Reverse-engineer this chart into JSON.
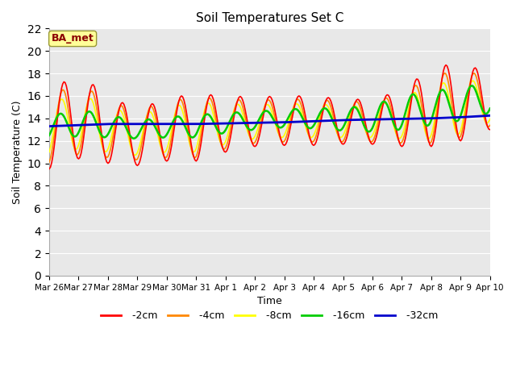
{
  "title": "Soil Temperatures Set C",
  "xlabel": "Time",
  "ylabel": "Soil Temperature (C)",
  "ylim": [
    0,
    22
  ],
  "yticks": [
    0,
    2,
    4,
    6,
    8,
    10,
    12,
    14,
    16,
    18,
    20,
    22
  ],
  "fig_bg": "#ffffff",
  "plot_bg": "#e8e8e8",
  "grid_color": "#ffffff",
  "annotation_text": "BA_met",
  "annotation_color": "#8b0000",
  "annotation_bg": "#ffff99",
  "annotation_edge": "#999933",
  "line_colors": {
    "-2cm": "#ff0000",
    "-4cm": "#ff8800",
    "-8cm": "#ffff00",
    "-16cm": "#00cc00",
    "-32cm": "#0000cc"
  },
  "line_widths": {
    "-2cm": 1.2,
    "-4cm": 1.2,
    "-8cm": 1.2,
    "-16cm": 1.8,
    "-32cm": 2.0
  },
  "xticklabels": [
    "Mar 26",
    "Mar 27",
    "Mar 28",
    "Mar 29",
    "Mar 30",
    "Mar 31",
    "Apr 1",
    "Apr 2",
    "Apr 3",
    "Apr 4",
    "Apr 5",
    "Apr 6",
    "Apr 7",
    "Apr 8",
    "Apr 9",
    "Apr 10"
  ],
  "n_per_day": 24,
  "n_days": 15,
  "base_32cm": [
    13.3,
    13.4,
    13.5,
    13.5,
    13.5,
    13.5,
    13.55,
    13.6,
    13.65,
    13.75,
    13.85,
    13.9,
    13.95,
    14.0,
    14.1,
    14.25,
    14.4,
    14.5,
    14.6,
    14.7,
    14.8,
    14.9,
    15.0,
    15.1,
    15.2
  ],
  "amp_2cm": [
    3.5,
    3.8,
    3.0,
    2.5,
    2.8,
    3.0,
    2.5,
    2.2,
    2.2,
    2.2,
    2.0,
    2.0,
    2.5,
    3.5,
    3.5,
    2.5
  ],
  "amp_4cm": [
    3.0,
    3.2,
    2.5,
    2.2,
    2.5,
    2.7,
    2.2,
    1.9,
    1.9,
    1.9,
    1.8,
    1.8,
    2.2,
    3.0,
    3.0,
    2.2
  ],
  "amp_8cm": [
    2.3,
    2.5,
    2.0,
    1.8,
    2.0,
    2.2,
    1.8,
    1.5,
    1.5,
    1.5,
    1.4,
    1.4,
    1.8,
    2.4,
    2.4,
    1.8
  ],
  "amp_16cm": [
    1.0,
    1.2,
    1.0,
    0.8,
    0.9,
    1.0,
    0.9,
    0.8,
    0.8,
    0.9,
    1.0,
    1.2,
    1.5,
    1.5,
    1.5,
    1.3
  ],
  "base_2cm_mean": [
    13.0,
    14.2,
    13.0,
    12.3,
    13.0,
    13.2,
    13.5,
    13.7,
    13.8,
    13.8,
    13.7,
    13.7,
    14.0,
    15.0,
    15.5,
    15.5
  ],
  "base_4cm_mean": [
    13.0,
    14.0,
    13.0,
    12.5,
    13.0,
    13.2,
    13.5,
    13.7,
    13.8,
    13.8,
    13.7,
    13.7,
    14.0,
    14.8,
    15.3,
    15.5
  ],
  "base_8cm_mean": [
    13.0,
    13.8,
    13.0,
    12.5,
    13.0,
    13.2,
    13.5,
    13.7,
    13.8,
    13.8,
    13.7,
    13.7,
    14.0,
    14.6,
    15.0,
    15.5
  ],
  "base_16cm_mean": [
    13.2,
    13.6,
    13.3,
    13.0,
    13.2,
    13.3,
    13.6,
    13.8,
    14.0,
    14.0,
    13.9,
    14.0,
    14.5,
    14.9,
    15.3,
    15.8
  ],
  "phase_2cm": 6,
  "phase_4cm": 5,
  "phase_8cm": 4,
  "phase_16cm": 3,
  "phase_32cm": 2
}
